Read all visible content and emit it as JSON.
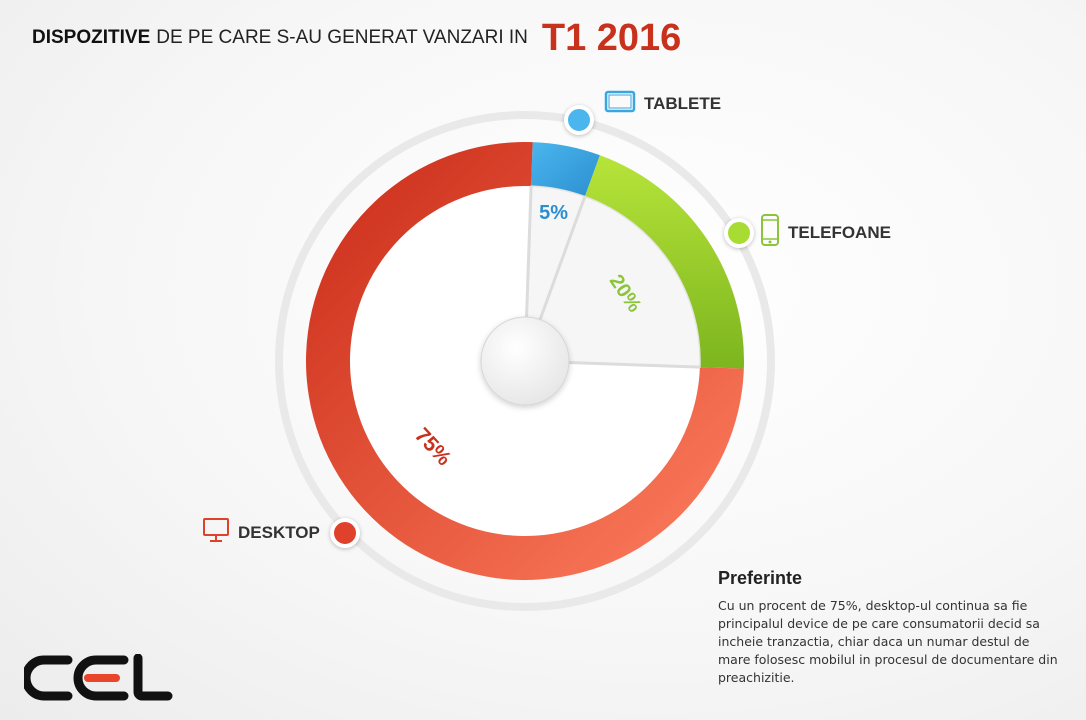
{
  "title": {
    "bold": "DISPOZITIVE",
    "rest": "DE PE CARE S-AU GENERAT VANZARI IN",
    "period": "T1 2016"
  },
  "chart_data": {
    "type": "pie",
    "style": "donut",
    "categories": [
      "TABLETE",
      "TELEFOANE",
      "DESKTOP"
    ],
    "values": [
      5,
      20,
      75
    ],
    "labels": [
      "5%",
      "20%",
      "75%"
    ],
    "colors": [
      "#3aa6e0",
      "#9fd22b",
      "#e8452a"
    ]
  },
  "legend": {
    "tablete": "TABLETE",
    "telefoane": "TELEFOANE",
    "desktop": "DESKTOP"
  },
  "icons": {
    "tablete": "tablet-icon",
    "telefoane": "phone-icon",
    "desktop": "monitor-icon"
  },
  "note": {
    "heading": "Preferinte",
    "body": "Cu un procent de 75%, desktop-ul continua sa fie principalul device de pe care consumatorii decid sa incheie tranzactia, chiar daca un numar destul de mare folosesc mobilul in procesul de documentare din preachizitie."
  },
  "logo": {
    "text": "CEL",
    "color": "#111111",
    "accent": "#e8452a"
  }
}
